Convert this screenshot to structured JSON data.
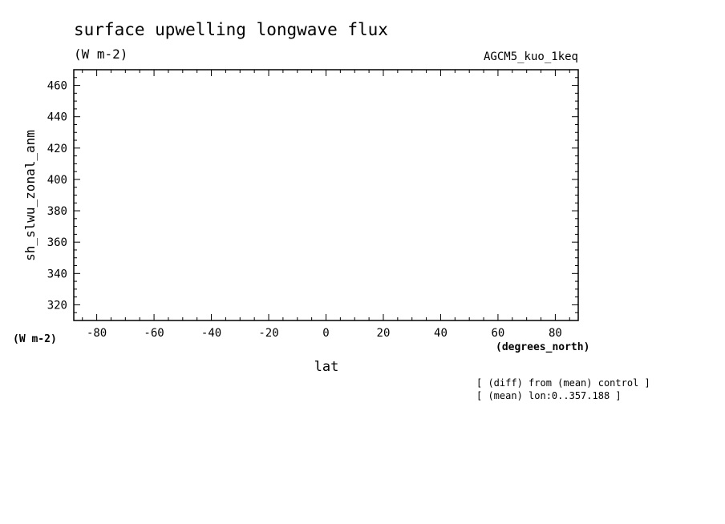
{
  "chart_data": {
    "type": "line",
    "title": "surface upwelling longwave flux",
    "subtitle": "(W m-2)",
    "run_label": "AGCM5_kuo_1keq",
    "ylabel": "sh_slwu_zonal_anm",
    "yunit": "(W m-2)",
    "xlabel": "lat",
    "xunit": "(degrees_north)",
    "xlim": [
      -88,
      88
    ],
    "ylim": [
      310,
      470
    ],
    "xticks": [
      -80,
      -60,
      -40,
      -20,
      0,
      20,
      40,
      60,
      80
    ],
    "xtick_labels": [
      "-80",
      "-60",
      "-40",
      "-20",
      "0",
      "20",
      "40",
      "60",
      "80"
    ],
    "yticks": [
      320,
      340,
      360,
      380,
      400,
      420,
      440,
      460
    ],
    "ytick_labels": [
      "320",
      "340",
      "360",
      "380",
      "400",
      "420",
      "440",
      "460"
    ],
    "series": [],
    "grid": false,
    "notes": [
      "[ (diff) from (mean) control ]",
      "[ (mean) lon:0..357.188 ]"
    ]
  }
}
